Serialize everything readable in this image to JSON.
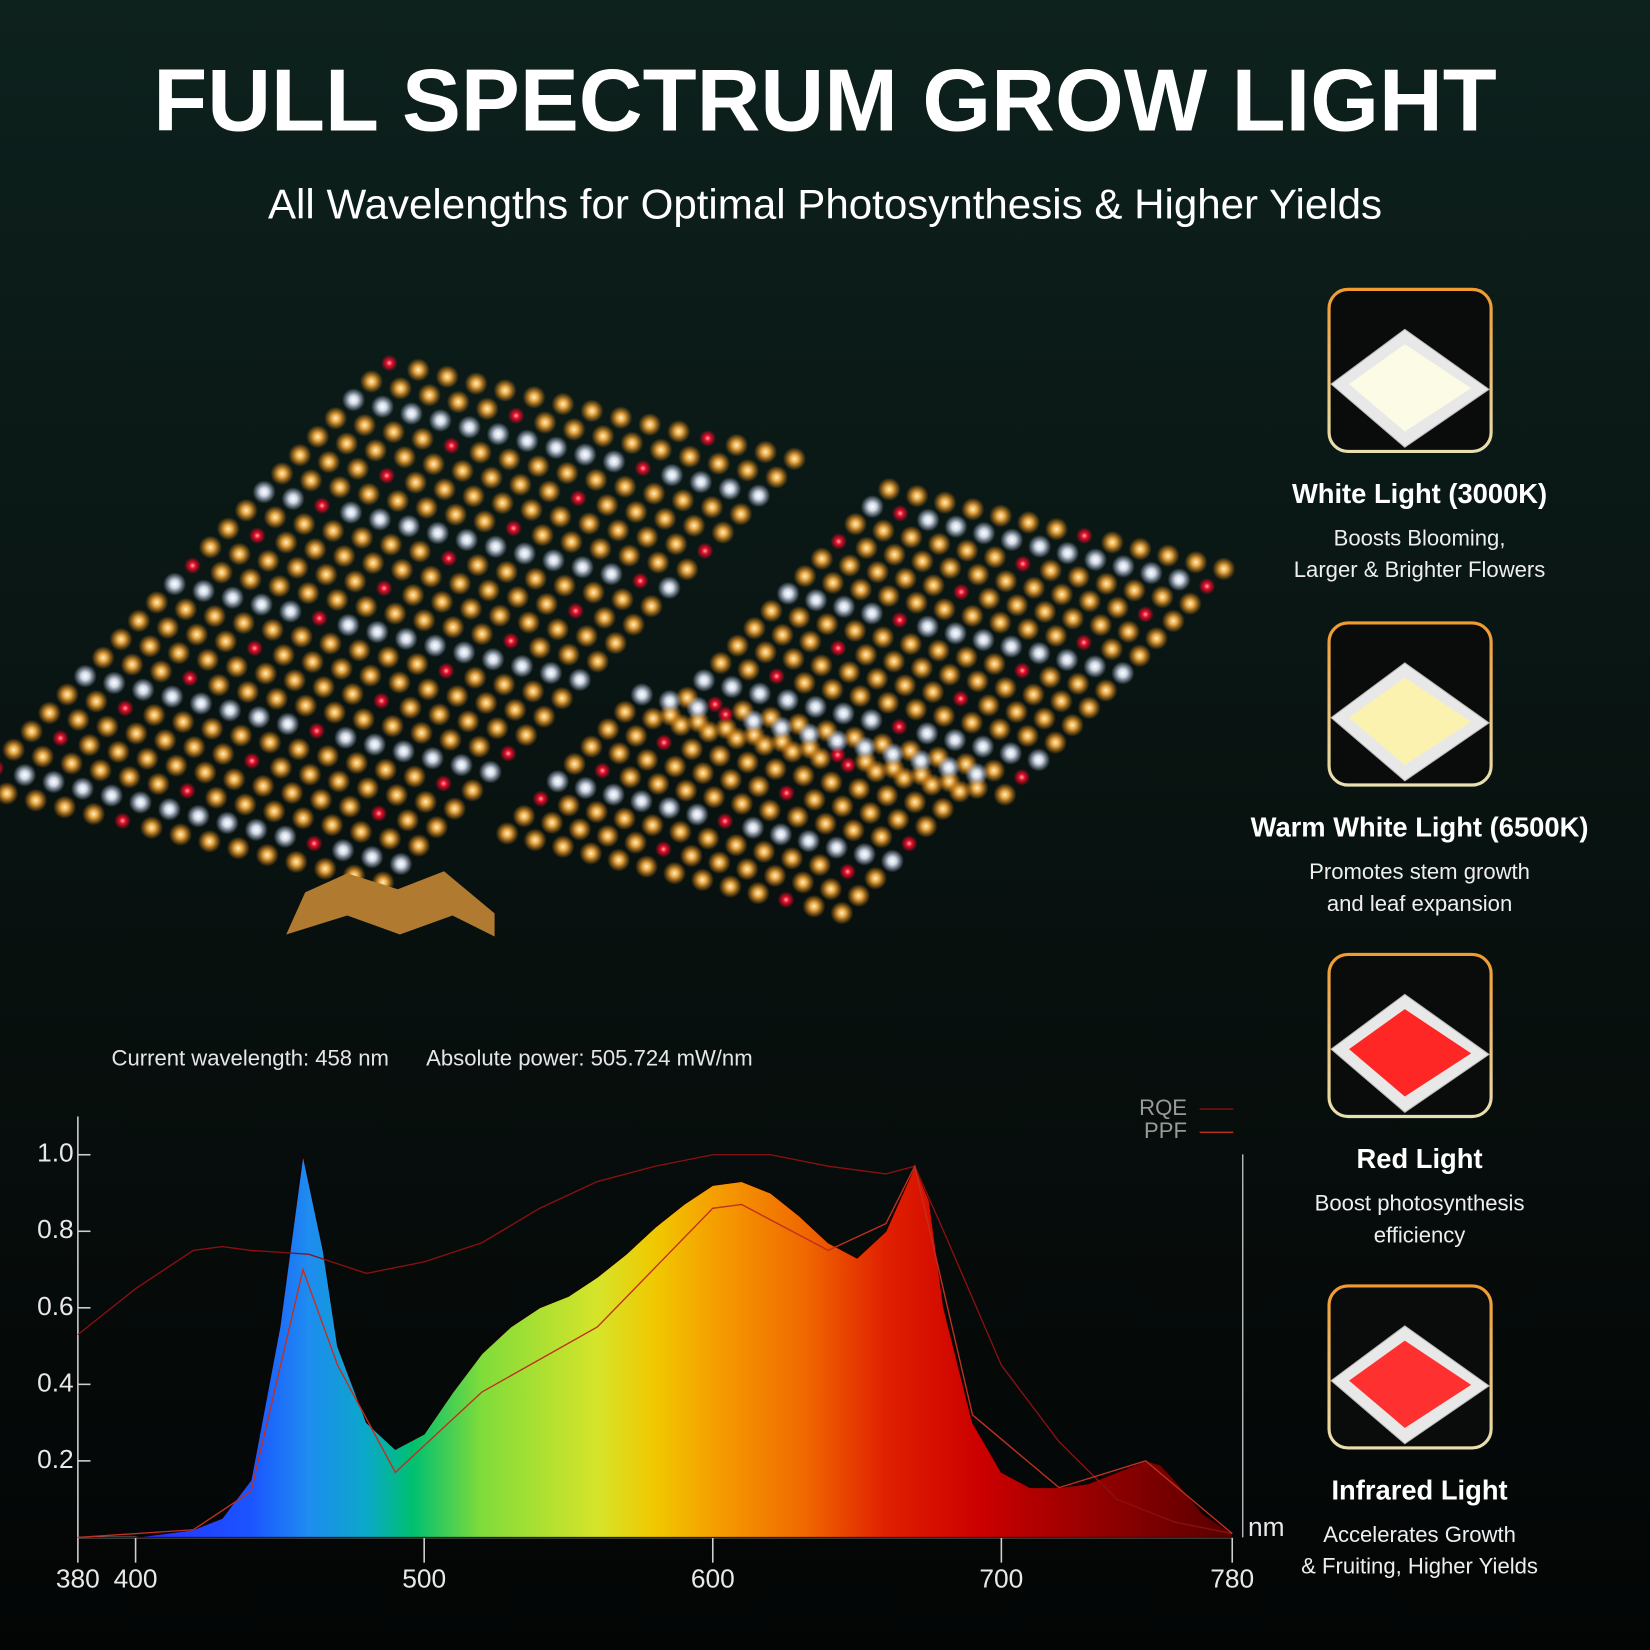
{
  "header": {
    "title": "FULL SPECTRUM GROW LIGHT",
    "subtitle": "All Wavelengths for Optimal Photosynthesis & Higher Yields"
  },
  "readout": {
    "wavelength": "Current wavelength: 458 nm",
    "power": "Absolute power: 505.724 mW/nm"
  },
  "chart_data": {
    "type": "area",
    "x_label": "nm",
    "xlim": [
      380,
      780
    ],
    "xticks": [
      380,
      400,
      500,
      600,
      700,
      780
    ],
    "ylim": [
      0,
      1.1
    ],
    "yticks": [
      0.2,
      0.4,
      0.6,
      0.8,
      {
        "value": 1,
        "label": "1.0"
      }
    ],
    "spectrum": {
      "x": [
        380,
        390,
        400,
        410,
        420,
        430,
        440,
        450,
        458,
        465,
        470,
        480,
        490,
        500,
        510,
        520,
        530,
        540,
        550,
        560,
        570,
        580,
        590,
        600,
        610,
        620,
        630,
        640,
        650,
        660,
        670,
        675,
        680,
        690,
        700,
        710,
        720,
        730,
        740,
        750,
        755,
        760,
        770,
        780
      ],
      "values": [
        0,
        0,
        0,
        0.01,
        0.02,
        0.05,
        0.15,
        0.55,
        1.0,
        0.75,
        0.5,
        0.3,
        0.23,
        0.27,
        0.38,
        0.48,
        0.55,
        0.6,
        0.63,
        0.68,
        0.74,
        0.81,
        0.87,
        0.92,
        0.93,
        0.9,
        0.84,
        0.77,
        0.73,
        0.8,
        0.97,
        0.88,
        0.6,
        0.3,
        0.17,
        0.13,
        0.13,
        0.14,
        0.17,
        0.2,
        0.19,
        0.15,
        0.06,
        0.01
      ]
    },
    "series": [
      {
        "name": "RQE",
        "color": "#8a1010",
        "x": [
          380,
          400,
          420,
          430,
          440,
          460,
          480,
          500,
          520,
          540,
          560,
          580,
          600,
          620,
          640,
          660,
          670,
          680,
          700,
          720,
          740,
          760,
          780
        ],
        "values": [
          0.53,
          0.65,
          0.75,
          0.76,
          0.75,
          0.74,
          0.69,
          0.72,
          0.77,
          0.86,
          0.93,
          0.97,
          1.0,
          1.0,
          0.97,
          0.95,
          0.97,
          0.8,
          0.45,
          0.25,
          0.1,
          0.04,
          0.01
        ]
      },
      {
        "name": "PPF",
        "color": "#c03020",
        "x": [
          380,
          420,
          440,
          458,
          470,
          490,
          520,
          560,
          600,
          610,
          640,
          660,
          670,
          690,
          720,
          750,
          780
        ],
        "values": [
          0,
          0.02,
          0.12,
          0.7,
          0.45,
          0.17,
          0.38,
          0.55,
          0.86,
          0.87,
          0.75,
          0.82,
          0.97,
          0.32,
          0.13,
          0.2,
          0.01
        ]
      }
    ]
  },
  "features": [
    {
      "title": "White Light (3000K)",
      "lines": [
        "Boosts Blooming,",
        "Larger & Brighter Flowers"
      ],
      "color": "#fbfbe6"
    },
    {
      "title": "Warm White Light (6500K)",
      "lines": [
        "Promotes stem growth",
        "and leaf expansion"
      ],
      "color": "#fbf2b0"
    },
    {
      "title": "Red Light",
      "lines": [
        "Boost photosynthesis",
        "efficiency"
      ],
      "color": "#ff2626"
    },
    {
      "title": "Infrared Light",
      "lines": [
        "Accelerates Growth",
        "& Fruiting, Higher Yields"
      ],
      "color": "#ff3030"
    }
  ]
}
